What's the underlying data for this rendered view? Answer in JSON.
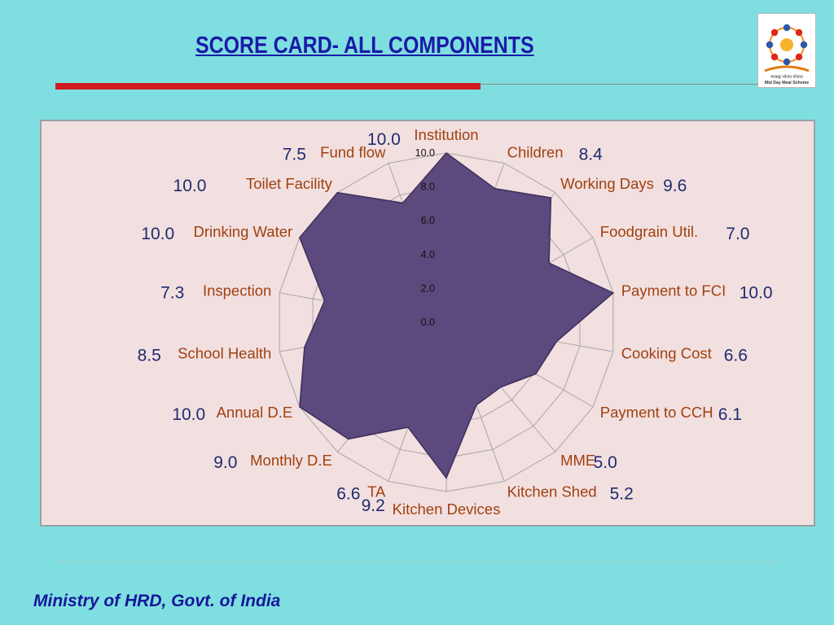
{
  "slide": {
    "title": "SCORE CARD- ALL COMPONENTS",
    "footer": "Ministry of HRD, Govt. of India",
    "logo": {
      "icon": "mid-day-meal-logo",
      "caption_hindi": "मध्याह्न भोजन योजना",
      "caption_english": "Mid Day Meal Scheme"
    }
  },
  "colors": {
    "background": "#7fdfe0",
    "title": "#1a1aa8",
    "rule": "#d21a22",
    "chart_panel": "#f2dfe0",
    "fill": "#5c4a7e",
    "category_label": "#a0410e",
    "value_label": "#1f2c6e"
  },
  "chart_data": {
    "type": "radar",
    "ylim": [
      0,
      10
    ],
    "ticks": [
      "0.0",
      "2.0",
      "4.0",
      "6.0",
      "8.0",
      "10.0"
    ],
    "grid": true,
    "categories": [
      "Institution",
      "Children",
      "Working Days",
      "Foodgrain Util.",
      "Payment to FCI",
      "Cooking Cost",
      "Payment to CCH",
      "MME",
      "Kitchen Shed",
      "Kitchen Devices",
      "TA",
      "Monthly D.E",
      "Annual D.E",
      "School Health",
      "Inspection",
      "Drinking Water",
      "Toilet Facility",
      "Fund flow"
    ],
    "values": [
      10.0,
      8.4,
      9.6,
      7.0,
      10.0,
      6.6,
      6.1,
      5.0,
      5.2,
      9.2,
      6.6,
      9.0,
      10.0,
      8.5,
      7.3,
      10.0,
      10.0,
      7.5
    ],
    "value_labels": [
      "10.0",
      "8.4",
      "9.6",
      "7.0",
      "10.0",
      "6.6",
      "6.1",
      "5.0",
      "5.2",
      "9.2",
      "6.6",
      "9.0",
      "10.0",
      "8.5",
      "7.3",
      "10.0",
      "10.0",
      "7.5"
    ]
  }
}
